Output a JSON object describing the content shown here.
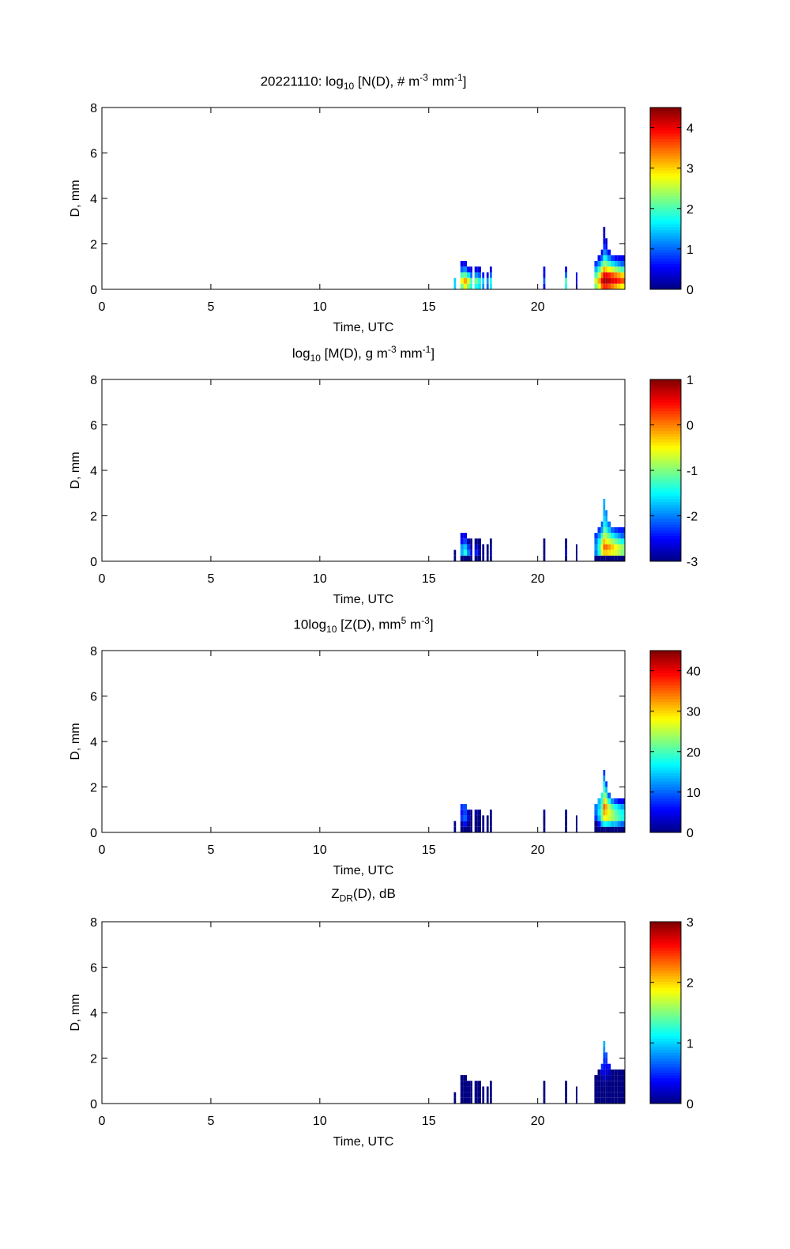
{
  "chart_data": {
    "type": "heatmap",
    "xlabel": "Time, UTC",
    "ylabel": "D, mm",
    "xlim": [
      0,
      24
    ],
    "ylim": [
      0,
      8
    ],
    "xticks": [
      "0",
      "5",
      "10",
      "15",
      "20"
    ],
    "yticks": [
      "0",
      "2",
      "4",
      "6",
      "8"
    ],
    "diameter_bin_mm": 0.25,
    "time_bins": [
      [
        16.15,
        16.25
      ],
      [
        16.45,
        16.6
      ],
      [
        16.6,
        16.75
      ],
      [
        16.75,
        16.9
      ],
      [
        16.9,
        17.0
      ],
      [
        17.1,
        17.25
      ],
      [
        17.25,
        17.4
      ],
      [
        17.45,
        17.55
      ],
      [
        17.65,
        17.75
      ],
      [
        17.8,
        17.9
      ],
      [
        20.25,
        20.35
      ],
      [
        21.25,
        21.35
      ],
      [
        21.75,
        21.82
      ],
      [
        22.6,
        22.75
      ],
      [
        22.75,
        22.9
      ],
      [
        22.9,
        23.0
      ],
      [
        23.0,
        23.1
      ],
      [
        23.1,
        23.2
      ],
      [
        23.2,
        23.35
      ],
      [
        23.35,
        23.5
      ],
      [
        23.5,
        23.65
      ],
      [
        23.65,
        23.8
      ],
      [
        23.8,
        24.0
      ]
    ],
    "panels": [
      {
        "title": [
          {
            "t": "20221110: log"
          },
          {
            "sub": "10"
          },
          {
            "t": " [N(D), # m"
          },
          {
            "sup": "-3"
          },
          {
            "t": " mm"
          },
          {
            "sup": "-1"
          },
          {
            "t": "]"
          }
        ],
        "clim": [
          0,
          4.5
        ],
        "cbar_ticks": [
          "0",
          "1",
          "2",
          "3",
          "4"
        ],
        "values": [
          [
            1.5,
            1.5
          ],
          [
            2.2,
            2.8,
            2,
            1,
            0.5
          ],
          [
            2.8,
            3.2,
            2.2,
            1.2,
            0.6
          ],
          [
            2.2,
            2.6,
            1.6,
            0.6
          ],
          [
            1.8,
            2,
            1,
            0.4
          ],
          [
            1.8,
            2.2,
            1.2,
            0.5
          ],
          [
            1.6,
            1.8,
            1,
            0.4
          ],
          [
            1.2,
            1.5,
            0.6
          ],
          [
            1,
            1.2,
            0.5
          ],
          [
            1.6,
            1.8,
            1,
            0.4
          ],
          [
            0.5,
            1,
            0.5,
            0.5
          ],
          [
            1.8,
            2,
            1,
            0.5
          ],
          [
            0,
            0.5,
            0.5
          ],
          [
            2.2,
            2.6,
            2,
            1.4,
            0.8
          ],
          [
            2.8,
            3.2,
            2.6,
            2,
            1.2,
            0.6
          ],
          [
            3.5,
            4,
            3.4,
            2.6,
            1.8,
            1,
            0.5
          ],
          [
            3.8,
            4.3,
            4,
            3.2,
            2.4,
            1.8,
            1.2,
            0.8,
            0.5,
            0.3,
            0.2
          ],
          [
            3.8,
            4.3,
            4,
            3,
            2.2,
            1.6,
            1,
            0.6,
            0.3
          ],
          [
            3.6,
            4.2,
            3.8,
            2.8,
            2,
            1.2,
            0.6
          ],
          [
            3.4,
            4,
            3.6,
            2.6,
            1.6,
            0.8
          ],
          [
            3.2,
            4,
            3.4,
            2.4,
            1.4,
            0.6
          ],
          [
            3,
            3.8,
            3.2,
            2.2,
            1.2,
            0.5
          ],
          [
            2.8,
            3.6,
            3,
            2,
            1,
            0.5
          ]
        ]
      },
      {
        "title": [
          {
            "t": "log"
          },
          {
            "sub": "10"
          },
          {
            "t": " [M(D), g m"
          },
          {
            "sup": "-3"
          },
          {
            "t": " mm"
          },
          {
            "sup": "-1"
          },
          {
            "t": "]"
          }
        ],
        "clim": [
          -3,
          1
        ],
        "cbar_ticks": [
          "-3",
          "-2",
          "-1",
          "0",
          "1"
        ],
        "values": [
          [
            -4.5,
            -3.1
          ],
          [
            -3.8,
            -1.8,
            -1.9,
            -2.45,
            -2.6
          ],
          [
            -3.2,
            -1.4,
            -1.7,
            -2.25,
            -2.5
          ],
          [
            -3.8,
            -2,
            -2.3,
            -2.85
          ],
          [
            -4.2,
            -2.6,
            -2.9,
            -3.05
          ],
          [
            -4.2,
            -2.4,
            -2.7,
            -2.95
          ],
          [
            -4.4,
            -2.8,
            -2.9,
            -3.05
          ],
          [
            -4.8,
            -3.1,
            -3.3
          ],
          [
            -5,
            -3.4,
            -3.4
          ],
          [
            -4.4,
            -2.8,
            -2.9,
            -3.05
          ],
          [
            -5.5,
            -3.6,
            -3.4,
            -2.95
          ],
          [
            -4.2,
            -2.6,
            -2.9,
            -2.95
          ],
          [
            -6,
            -4.1,
            -3.4
          ],
          [
            -3.8,
            -2,
            -1.9,
            -2.05,
            -2.3
          ],
          [
            -3.2,
            -1.4,
            -1.3,
            -1.45,
            -1.9,
            -2.3
          ],
          [
            -3.5,
            -0.6,
            -0.5,
            -0.85,
            -1.3,
            -1.9,
            -2.15
          ],
          [
            -3.2,
            -0.3,
            0.1,
            -0.25,
            -0.7,
            -1.1,
            -1.45,
            -1.65,
            -1.8,
            -1.85,
            -1.8
          ],
          [
            -3.2,
            -0.3,
            0.1,
            -0.45,
            -0.9,
            -1.3,
            -1.65,
            -1.85,
            -2
          ],
          [
            -3.4,
            -0.4,
            -0.1,
            -0.65,
            -1.1,
            -1.7,
            -2.05
          ],
          [
            -3.6,
            -0.6,
            -0.3,
            -0.85,
            -1.5,
            -2.1
          ],
          [
            -3.8,
            -0.6,
            -0.5,
            -1.05,
            -1.7,
            -2.3
          ],
          [
            -3.5,
            -0.8,
            -0.7,
            -1.25,
            -1.9,
            -2.4
          ],
          [
            -3.2,
            -1,
            -0.9,
            -1.45,
            -2.1,
            -2.4
          ]
        ]
      },
      {
        "title": [
          {
            "t": "10log"
          },
          {
            "sub": "10"
          },
          {
            "t": " [Z(D),  mm"
          },
          {
            "sup": "5"
          },
          {
            "t": " m"
          },
          {
            "sup": "-3"
          },
          {
            "t": "]"
          }
        ],
        "clim": [
          0,
          45
        ],
        "cbar_ticks": [
          "0",
          "10",
          "20",
          "30",
          "40"
        ],
        "values": [
          [
            0,
            0
          ],
          [
            0,
            2,
            8,
            6.5,
            8
          ],
          [
            0,
            6,
            10,
            8.5,
            9
          ],
          [
            0,
            0,
            4,
            2.5
          ],
          [
            0,
            0,
            0,
            0.5
          ],
          [
            0,
            0,
            0,
            1.5
          ],
          [
            0,
            0,
            0,
            0.5
          ],
          [
            0,
            0,
            0
          ],
          [
            0,
            0,
            0
          ],
          [
            0,
            0,
            0,
            0.5
          ],
          [
            0,
            0,
            0,
            1.5
          ],
          [
            0,
            0,
            0,
            1.5
          ],
          [
            0,
            0,
            0
          ],
          [
            0,
            0,
            8,
            10.5,
            11
          ],
          [
            0,
            6,
            14,
            16.5,
            15,
            14
          ],
          [
            0,
            14,
            22,
            22.5,
            21,
            18,
            17.5
          ],
          [
            0,
            17,
            28,
            32,
            35,
            30,
            24,
            20,
            16,
            12,
            8
          ],
          [
            0,
            17,
            28,
            30,
            32,
            26,
            20,
            14,
            8
          ],
          [
            0,
            16,
            26,
            27,
            25,
            18,
            10
          ],
          [
            0,
            14,
            24,
            24,
            20,
            12
          ],
          [
            0,
            14,
            22,
            21,
            17,
            8
          ],
          [
            0,
            12,
            20,
            19,
            15,
            5
          ],
          [
            0,
            10,
            18,
            17,
            13,
            5
          ]
        ]
      },
      {
        "title": [
          {
            "t": "Z"
          },
          {
            "sub": "DR"
          },
          {
            "t": "(D), dB"
          }
        ],
        "clim": [
          0,
          3
        ],
        "cbar_ticks": [
          "0",
          "1",
          "2",
          "3"
        ],
        "values": [
          [
            0,
            0
          ],
          [
            0,
            0,
            0,
            0,
            0
          ],
          [
            0,
            0,
            0,
            0,
            0
          ],
          [
            0,
            0,
            0,
            0
          ],
          [
            0,
            0,
            0,
            0
          ],
          [
            0,
            0,
            0,
            0
          ],
          [
            0,
            0,
            0,
            0
          ],
          [
            0,
            0,
            0
          ],
          [
            0,
            0,
            0
          ],
          [
            0,
            0,
            0,
            0
          ],
          [
            0,
            0,
            0,
            0
          ],
          [
            0,
            0,
            0,
            0
          ],
          [
            0,
            0,
            0
          ],
          [
            0,
            0,
            0,
            0,
            0
          ],
          [
            0,
            0,
            0,
            0,
            0,
            0
          ],
          [
            0,
            0,
            0,
            0,
            0.1,
            0.3,
            0.5
          ],
          [
            0,
            0,
            0,
            0.1,
            0.2,
            0.3,
            0.4,
            0.5,
            0.6,
            0.8,
            0.9
          ],
          [
            0,
            0,
            0,
            0,
            0.1,
            0.2,
            0.3,
            0.5,
            0.6
          ],
          [
            0,
            0,
            0,
            0,
            0.1,
            0.2,
            0.4
          ],
          [
            0,
            0,
            0,
            0,
            0,
            0
          ],
          [
            0,
            0,
            0,
            0,
            0,
            0
          ],
          [
            0,
            0,
            0,
            0,
            0,
            0
          ],
          [
            0,
            0,
            0,
            0,
            0,
            0
          ]
        ]
      }
    ]
  }
}
